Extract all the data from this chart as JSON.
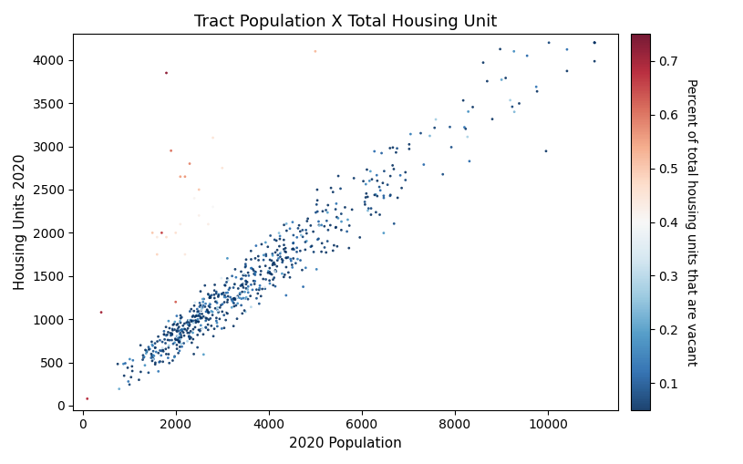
{
  "title": "Tract Population X Total Housing Unit",
  "xlabel": "2020 Population",
  "ylabel": "Housing Units 2020",
  "colorbar_label": "Percent of total housing units that are vacant",
  "colormap": "RdBu_r",
  "vmin": 0.05,
  "vmax": 0.75,
  "xlim": [
    -200,
    11500
  ],
  "ylim": [
    -50,
    4300
  ],
  "xticks": [
    0,
    2000,
    4000,
    6000,
    8000,
    10000
  ],
  "yticks": [
    0,
    500,
    1000,
    1500,
    2000,
    2500,
    3000,
    3500,
    4000
  ],
  "marker_size": 4,
  "alpha": 0.9,
  "background_color": "#ffffff",
  "title_fontsize": 13,
  "label_fontsize": 11,
  "colorbar_ticks": [
    0.1,
    0.2,
    0.3,
    0.4,
    0.5,
    0.6,
    0.7
  ],
  "n_points": 680,
  "seed": 12345
}
